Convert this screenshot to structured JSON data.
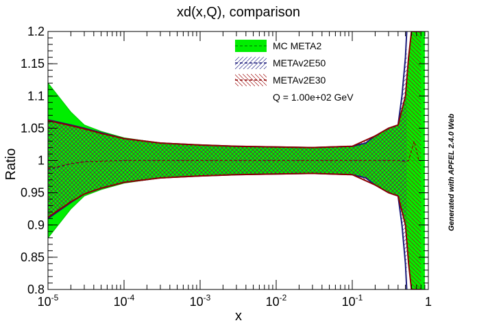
{
  "chart_data": {
    "type": "area",
    "title": "xd(x,Q), comparison",
    "xlabel": "x",
    "ylabel": "Ratio",
    "x_scale": "log",
    "xlim": [
      1e-05,
      1
    ],
    "ylim": [
      0.8,
      1.2
    ],
    "x_ticks": [
      {
        "value": 1e-05,
        "base": "10",
        "exp": "-5"
      },
      {
        "value": 0.0001,
        "base": "10",
        "exp": "-4"
      },
      {
        "value": 0.001,
        "base": "10",
        "exp": "-3"
      },
      {
        "value": 0.01,
        "base": "10",
        "exp": "-2"
      },
      {
        "value": 0.1,
        "base": "10",
        "exp": "-1"
      },
      {
        "value": 1,
        "base": "1",
        "exp": ""
      }
    ],
    "y_ticks": [
      "0.8",
      "0.85",
      "0.9",
      "0.95",
      "1",
      "1.05",
      "1.1",
      "1.15",
      "1.2"
    ],
    "annotation": "Q = 1.00e+02 GeV",
    "credit": "Generated with APFEL 2.4.0 Web",
    "legend_position": "top-right",
    "series": [
      {
        "name": "MC META2",
        "fill_color": "#00ee00",
        "line_color": "#00cc00",
        "x": [
          1e-05,
          2e-05,
          3e-05,
          5e-05,
          0.0001,
          0.0003,
          0.001,
          0.003,
          0.01,
          0.03,
          0.1,
          0.15,
          0.2,
          0.3,
          0.4,
          0.5,
          0.6,
          0.7,
          0.8,
          0.9
        ],
        "central": [
          0.99,
          0.995,
          0.998,
          0.999,
          1.0,
          1.0,
          1.0,
          1.0,
          1.0,
          1.0,
          1.0,
          1.0,
          1.0,
          1.0,
          1.0,
          1.0,
          1.0,
          1.0,
          1.0,
          1.0
        ],
        "upper": [
          1.12,
          1.075,
          1.055,
          1.045,
          1.035,
          1.027,
          1.024,
          1.022,
          1.021,
          1.02,
          1.022,
          1.027,
          1.038,
          1.05,
          1.055,
          1.1,
          1.2,
          1.2,
          1.2,
          1.2
        ],
        "lower": [
          0.88,
          0.925,
          0.945,
          0.955,
          0.965,
          0.973,
          0.976,
          0.978,
          0.979,
          0.98,
          0.978,
          0.973,
          0.962,
          0.95,
          0.945,
          0.9,
          0.8,
          0.8,
          0.8,
          0.8
        ]
      },
      {
        "name": "METAv2E50",
        "line_color": "#1a1a7a",
        "x": [
          1e-05,
          2e-05,
          3e-05,
          5e-05,
          0.0001,
          0.0003,
          0.001,
          0.003,
          0.01,
          0.03,
          0.1,
          0.15,
          0.2,
          0.3,
          0.4,
          0.45,
          0.5,
          0.52
        ],
        "central": [
          0.985,
          0.995,
          0.998,
          0.999,
          1.0,
          1.0,
          1.0,
          1.0,
          1.0,
          1.0,
          1.0,
          1.0,
          1.0,
          1.0,
          1.0,
          1.0,
          1.0,
          1.0
        ],
        "upper": [
          1.063,
          1.055,
          1.05,
          1.043,
          1.034,
          1.027,
          1.024,
          1.022,
          1.021,
          1.02,
          1.022,
          1.027,
          1.038,
          1.05,
          1.055,
          1.1,
          1.16,
          1.2
        ],
        "lower": [
          0.91,
          0.935,
          0.948,
          0.957,
          0.966,
          0.973,
          0.976,
          0.978,
          0.979,
          0.98,
          0.978,
          0.973,
          0.962,
          0.95,
          0.945,
          0.9,
          0.84,
          0.8
        ]
      },
      {
        "name": "METAv2E30",
        "line_color": "#8b0000",
        "x": [
          1e-05,
          2e-05,
          3e-05,
          5e-05,
          0.0001,
          0.0003,
          0.001,
          0.003,
          0.01,
          0.03,
          0.1,
          0.2,
          0.3,
          0.4,
          0.5,
          0.55,
          0.6,
          0.65,
          0.7,
          0.75,
          0.8
        ],
        "central": [
          0.987,
          0.995,
          0.998,
          0.999,
          1.0,
          1.0,
          1.0,
          1.0,
          1.0,
          1.0,
          1.0,
          1.0,
          1.0,
          1.0,
          0.998,
          1.0,
          1.015,
          1.03,
          1.015,
          1.0,
          1.0
        ],
        "upper": [
          1.062,
          1.054,
          1.049,
          1.042,
          1.034,
          1.027,
          1.024,
          1.022,
          1.021,
          1.02,
          1.022,
          1.038,
          1.05,
          1.055,
          1.1,
          1.16,
          1.2,
          1.2,
          1.2,
          1.2,
          1.2
        ],
        "lower": [
          0.912,
          0.936,
          0.948,
          0.957,
          0.966,
          0.973,
          0.976,
          0.978,
          0.979,
          0.98,
          0.978,
          0.962,
          0.95,
          0.945,
          0.9,
          0.84,
          0.8,
          0.8,
          0.8,
          0.8,
          0.8
        ]
      }
    ]
  }
}
